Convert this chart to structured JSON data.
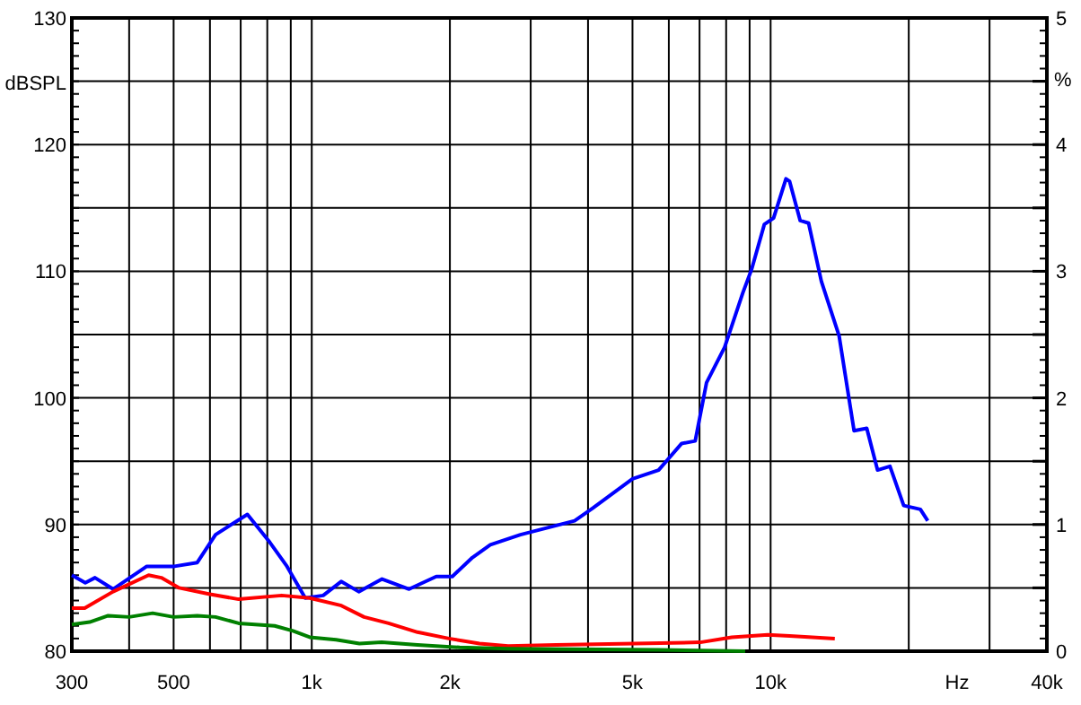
{
  "chart_data": {
    "type": "line",
    "xlabel": "Hz",
    "ylabel": "dBSPL",
    "y2label": "%",
    "log": "x",
    "grid": true,
    "marker": "none",
    "line_style": "solid",
    "xlim": [
      300,
      40000
    ],
    "xticks": [
      300,
      {
        "value": 400,
        "label": null
      },
      500,
      {
        "value": 600,
        "label": null
      },
      {
        "value": 700,
        "label": null
      },
      {
        "value": 800,
        "label": null
      },
      {
        "value": 900,
        "label": null
      },
      {
        "value": 1000,
        "label": "1k"
      },
      {
        "value": 2000,
        "label": "2k"
      },
      {
        "value": 3000,
        "label": null
      },
      {
        "value": 4000,
        "label": null
      },
      {
        "value": 5000,
        "label": "5k"
      },
      {
        "value": 6000,
        "label": null
      },
      {
        "value": 7000,
        "label": null
      },
      {
        "value": 8000,
        "label": null
      },
      {
        "value": 9000,
        "label": null
      },
      {
        "value": 10000,
        "label": "10k"
      },
      {
        "value": 20000,
        "label": null
      },
      {
        "value": 30000,
        "label": null
      },
      {
        "value": 40000,
        "label": "40k"
      }
    ],
    "ylim": [
      80,
      130
    ],
    "yticks": [
      80,
      {
        "value": 85,
        "label": null
      },
      90,
      {
        "value": 95,
        "label": null
      },
      100,
      {
        "value": 105,
        "label": null
      },
      110,
      {
        "value": 115,
        "label": null
      },
      120,
      {
        "value": 125,
        "label": null
      },
      130
    ],
    "y2lim": [
      0,
      5
    ],
    "y2ticks": [
      0,
      {
        "value": 0.5,
        "label": null
      },
      1,
      {
        "value": 1.5,
        "label": null
      },
      2,
      {
        "value": 2.5,
        "label": null
      },
      3,
      {
        "value": 3.5,
        "label": null
      },
      4,
      {
        "value": 4.5,
        "label": null
      },
      5
    ],
    "series": [
      {
        "color": "#0000ff",
        "x": [
          300,
          321,
          337,
          369,
          437,
          502,
          563,
          617,
          724,
          810,
          883,
          968,
          1059,
          1159,
          1266,
          1423,
          1630,
          1868,
          2025,
          2240,
          2450,
          2850,
          3740,
          4100,
          5000,
          5700,
          6400,
          6850,
          7250,
          7940,
          8700,
          9100,
          9690,
          10150,
          10800,
          11000,
          11600,
          12100,
          12900,
          14100,
          15200,
          16200,
          17100,
          18200,
          19500,
          21200,
          22000
        ],
        "values": [
          86,
          85.4,
          85.8,
          84.9,
          86.7,
          86.7,
          87,
          89.2,
          90.8,
          88.6,
          86.7,
          84.2,
          84.4,
          85.5,
          84.7,
          85.7,
          84.9,
          85.9,
          85.9,
          87.4,
          88.4,
          89.2,
          90.3,
          91.3,
          93.6,
          94.3,
          96.4,
          96.6,
          101.2,
          104,
          108.3,
          110.2,
          113.7,
          114.2,
          117.3,
          117.1,
          114,
          113.8,
          109.2,
          104.9,
          97.4,
          97.6,
          94.3,
          94.6,
          91.5,
          91.2,
          90.3
        ]
      },
      {
        "color": "#ff0000",
        "axis": "y2",
        "x": [
          300,
          320,
          369,
          441,
          470,
          514,
          600,
          693,
          860,
          990,
          1160,
          1300,
          1470,
          1700,
          1990,
          2320,
          2680,
          3410,
          5050,
          7030,
          8230,
          9860,
          11000,
          13800
        ],
        "values": [
          0.34,
          0.34,
          0.47,
          0.6,
          0.58,
          0.5,
          0.45,
          0.41,
          0.44,
          0.42,
          0.36,
          0.27,
          0.22,
          0.15,
          0.1,
          0.06,
          0.04,
          0.05,
          0.06,
          0.07,
          0.11,
          0.13,
          0.12,
          0.1
        ]
      },
      {
        "color": "#008000",
        "axis": "y2",
        "x": [
          300,
          328,
          360,
          400,
          450,
          500,
          563,
          617,
          693,
          830,
          910,
          990,
          1130,
          1270,
          1420,
          1700,
          2100,
          2680,
          5700,
          8800
        ],
        "values": [
          0.21,
          0.23,
          0.28,
          0.27,
          0.3,
          0.27,
          0.28,
          0.27,
          0.22,
          0.2,
          0.16,
          0.11,
          0.09,
          0.06,
          0.07,
          0.05,
          0.03,
          0.02,
          0.01,
          0
        ]
      }
    ]
  }
}
